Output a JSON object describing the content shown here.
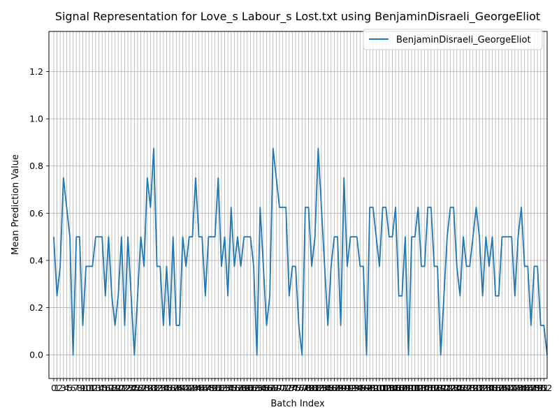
{
  "chart_data": {
    "type": "line",
    "title": "Signal Representation for Love_s Labour_s Lost.txt using BenjaminDisraeli_GeorgeEliot",
    "xlabel": "Batch Index",
    "ylabel": "Mean Prediction Value",
    "xlim": [
      -1.5,
      153
    ],
    "ylim": [
      -0.1,
      1.37
    ],
    "y_ticks": [
      "0.0",
      "0.2",
      "0.4",
      "0.6",
      "0.8",
      "1.0",
      "1.2"
    ],
    "x_tick_count": 153,
    "grid": true,
    "legend_position": "top-right",
    "series": [
      {
        "name": "BenjaminDisraeli_GeorgeEliot",
        "color": "#1f77b4",
        "x": [
          0,
          1,
          2,
          3,
          4,
          5,
          6,
          7,
          8,
          9,
          10,
          11,
          12,
          13,
          14,
          15,
          16,
          17,
          18,
          19,
          20,
          21,
          22,
          23,
          24,
          25,
          26,
          27,
          28,
          29,
          30,
          31,
          32,
          33,
          34,
          35,
          36,
          37,
          38,
          39,
          40,
          41,
          42,
          43,
          44,
          45,
          46,
          47,
          48,
          49,
          50,
          51,
          52,
          53,
          54,
          55,
          56,
          57,
          58,
          59,
          60,
          61,
          62,
          63,
          64,
          65,
          66,
          67,
          68,
          69,
          70,
          71,
          72,
          73,
          74,
          75,
          76,
          77,
          78,
          79,
          80,
          81,
          82,
          83,
          84,
          85,
          86,
          87,
          88,
          89,
          90,
          91,
          92,
          93,
          94,
          95,
          96,
          97,
          98,
          99,
          100,
          101,
          102,
          103,
          104,
          105,
          106,
          107,
          108,
          109,
          110,
          111,
          112,
          113,
          114,
          115,
          116,
          117,
          118,
          119,
          120,
          121,
          122,
          123,
          124,
          125,
          126,
          127,
          128,
          129,
          130,
          131,
          132,
          133,
          134,
          135,
          136,
          137,
          138,
          139,
          140,
          141,
          142,
          143,
          144,
          145,
          146,
          147,
          148,
          149,
          150,
          151,
          152,
          153
        ],
        "values": [
          0.5,
          0.25,
          0.375,
          0.75,
          0.625,
          0.5,
          0.0,
          0.5,
          0.5,
          0.125,
          0.375,
          0.375,
          0.375,
          0.5,
          0.5,
          0.5,
          0.25,
          0.5,
          0.25,
          0.125,
          0.25,
          0.5,
          0.125,
          0.5,
          0.25,
          0.0,
          0.25,
          0.5,
          0.375,
          0.75,
          0.625,
          0.875,
          0.375,
          0.375,
          0.125,
          0.375,
          0.125,
          0.5,
          0.125,
          0.125,
          0.5,
          0.375,
          0.5,
          0.5,
          0.75,
          0.5,
          0.5,
          0.25,
          0.5,
          0.5,
          0.5,
          0.75,
          0.375,
          0.5,
          0.25,
          0.625,
          0.375,
          0.5,
          0.375,
          0.5,
          0.5,
          0.5,
          0.375,
          0.0,
          0.625,
          0.375,
          0.125,
          0.25,
          0.875,
          0.75,
          0.625,
          0.625,
          0.625,
          0.25,
          0.375,
          0.375,
          0.125,
          0.0,
          0.625,
          0.625,
          0.375,
          0.5,
          0.875,
          0.625,
          0.375,
          0.125,
          0.375,
          0.5,
          0.5,
          0.125,
          0.75,
          0.375,
          0.5,
          0.5,
          0.5,
          0.375,
          0.375,
          0.0,
          0.625,
          0.625,
          0.5,
          0.375,
          0.625,
          0.625,
          0.5,
          0.5,
          0.625,
          0.25,
          0.25,
          0.5,
          0.0,
          0.5,
          0.5,
          0.625,
          0.375,
          0.375,
          0.625,
          0.625,
          0.375,
          0.375,
          0.0,
          0.25,
          0.5,
          0.625,
          0.625,
          0.375,
          0.25,
          0.5,
          0.375,
          0.375,
          0.5,
          0.625,
          0.5,
          0.25,
          0.5,
          0.375,
          0.5,
          0.25,
          0.25,
          0.5,
          0.5,
          0.5,
          0.5,
          0.25,
          0.5,
          0.625,
          0.375,
          0.375,
          0.125,
          0.375,
          0.375,
          0.125,
          0.125,
          0.0
        ]
      }
    ]
  }
}
